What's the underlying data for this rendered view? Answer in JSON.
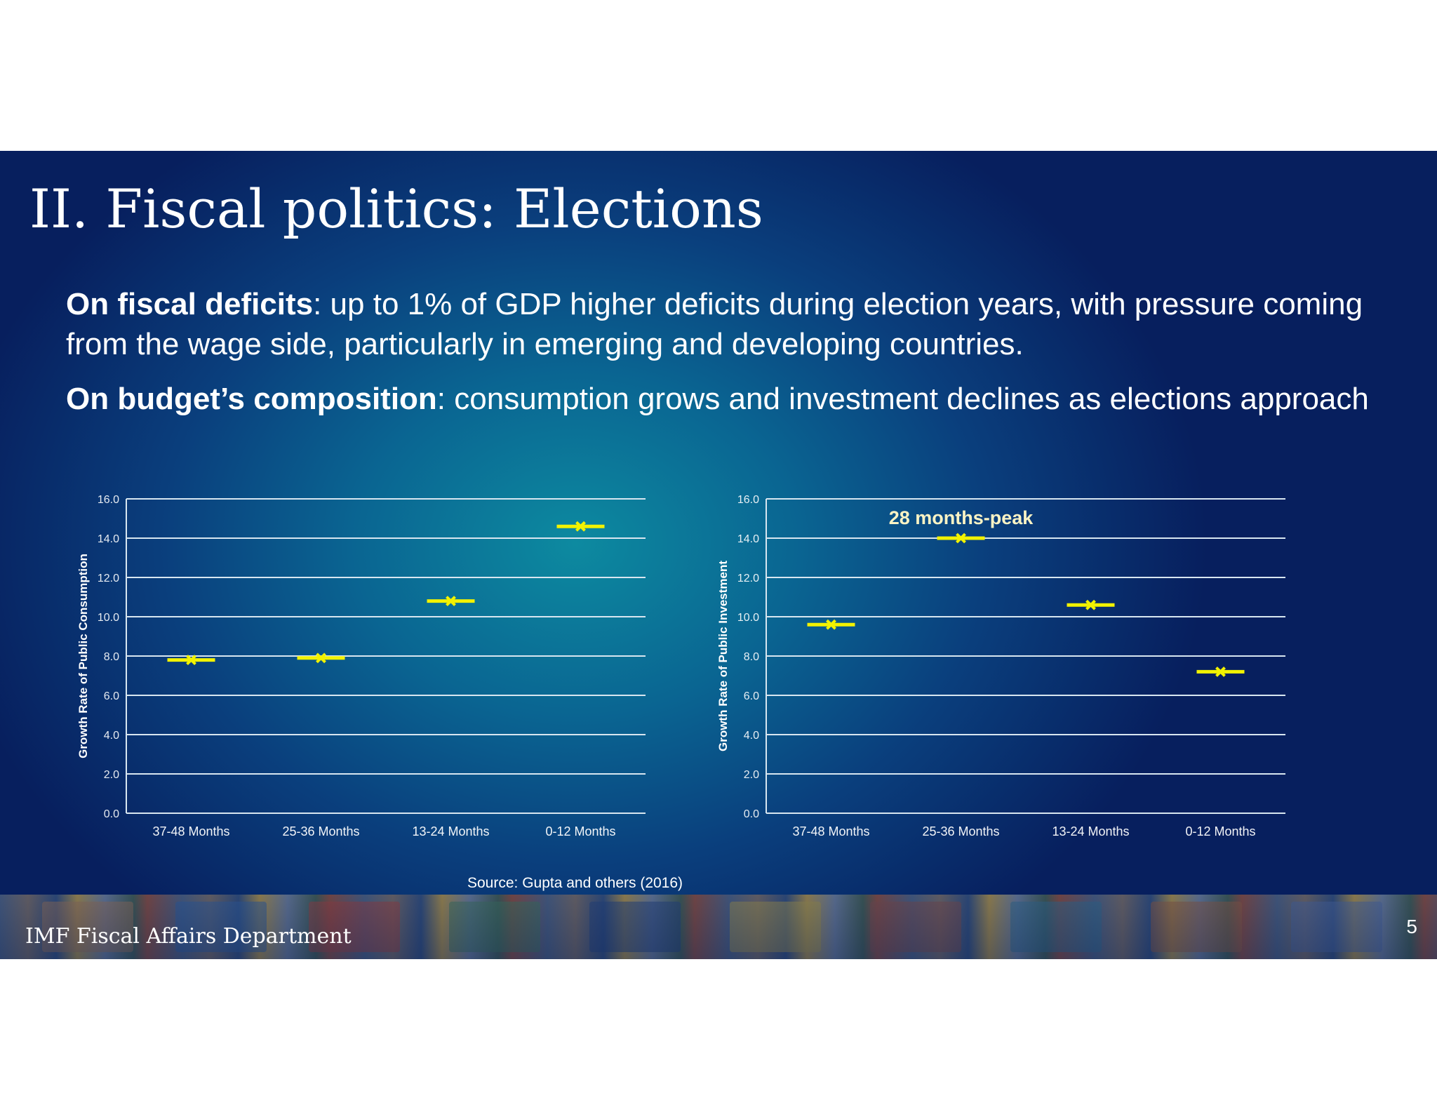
{
  "slide": {
    "title": "II. Fiscal politics: Elections",
    "paragraphs": [
      {
        "bold": "On fiscal deficits",
        "rest": ":  up to 1% of GDP higher deficits during election years, with pressure coming from the wage side, particularly in emerging and developing countries."
      },
      {
        "bold": "On budget’s composition",
        "rest": ": consumption grows and investment declines as elections approach"
      }
    ],
    "source": "Source: Gupta and others (2016)",
    "footer_label": "IMF Fiscal Affairs Department",
    "page_number": "5"
  },
  "colors": {
    "marker": "#f2f200",
    "grid": "#d8e6f0",
    "text": "#ffffff"
  },
  "chart_data": [
    {
      "type": "scatter",
      "categories": [
        "37-48 Months",
        "25-36 Months",
        "13-24 Months",
        "0-12 Months"
      ],
      "series": [
        {
          "values": [
            7.8,
            7.9,
            10.8,
            14.6
          ]
        }
      ],
      "ylabel": "Growth Rate of Public Consumption",
      "ylim": [
        0,
        16
      ],
      "yticks": [
        "0.0",
        "2.0",
        "4.0",
        "6.0",
        "8.0",
        "10.0",
        "12.0",
        "14.0",
        "16.0"
      ],
      "grid": true,
      "annotation": ""
    },
    {
      "type": "scatter",
      "categories": [
        "37-48 Months",
        "25-36 Months",
        "13-24 Months",
        "0-12 Months"
      ],
      "series": [
        {
          "values": [
            9.6,
            14.0,
            10.6,
            7.2
          ]
        }
      ],
      "ylabel": "Growth Rate of Public Investment",
      "ylim": [
        0,
        16
      ],
      "yticks": [
        "0.0",
        "2.0",
        "4.0",
        "6.0",
        "8.0",
        "10.0",
        "12.0",
        "14.0",
        "16.0"
      ],
      "grid": true,
      "annotation": "28 months-peak"
    }
  ]
}
